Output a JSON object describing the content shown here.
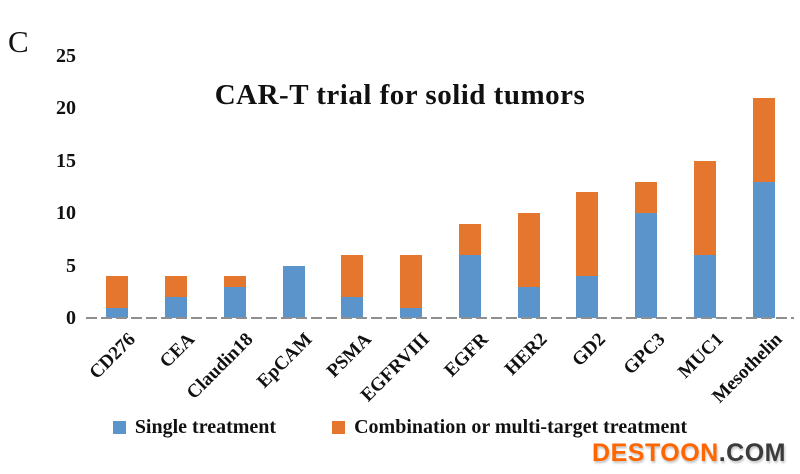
{
  "panel_label": "C",
  "chart_data": {
    "type": "bar",
    "subtype": "stacked-vertical",
    "title": "CAR-T trial for solid tumors",
    "categories": [
      "CD276",
      "CEA",
      "Claudin18",
      "EpCAM",
      "PSMA",
      "EGFRVIII",
      "EGFR",
      "HER2",
      "GD2",
      "GPC3",
      "MUC1",
      "Mesothelin"
    ],
    "series": [
      {
        "name": "Single treatment",
        "color": "#5B94CB",
        "values": [
          1,
          2,
          3,
          5,
          2,
          1,
          6,
          3,
          4,
          10,
          6,
          13
        ]
      },
      {
        "name": "Combination or multi-target treatment",
        "color": "#E5762D",
        "values": [
          3,
          2,
          1,
          0,
          4,
          5,
          3,
          7,
          8,
          3,
          9,
          8
        ]
      }
    ],
    "totals": [
      4,
      4,
      4,
      5,
      6,
      6,
      9,
      10,
      12,
      13,
      15,
      21
    ],
    "xlabel": "",
    "ylabel": "",
    "ylim": [
      0,
      25
    ],
    "yticks": [
      0,
      5,
      10,
      15,
      20,
      25
    ],
    "grid": false,
    "legend_position": "bottom",
    "axis_line_style": "dashed-gray"
  },
  "watermark": {
    "name": "DESTOON",
    "suffix": ".COM",
    "name_color": "#FF6600",
    "suffix_color": "#3B3B3B"
  }
}
